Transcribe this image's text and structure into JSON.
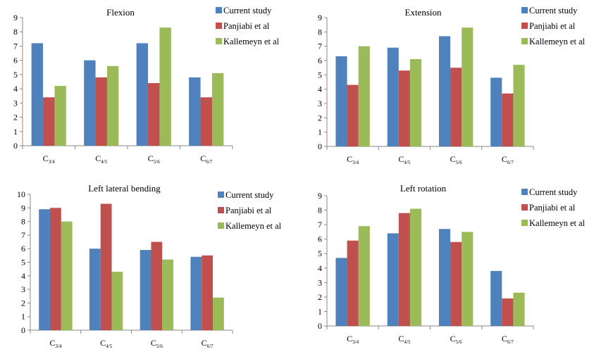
{
  "colors": {
    "current": "#4F81BD",
    "panjiabi": "#C0504D",
    "kallemeyn": "#9BBB59"
  },
  "chart_data": [
    {
      "type": "bar",
      "title": "Flexion",
      "categories": [
        {
          "main": "C",
          "sub": "3/4"
        },
        {
          "main": "C",
          "sub": "4/5"
        },
        {
          "main": "C",
          "sub": "5/6"
        },
        {
          "main": "C",
          "sub": "6/7"
        }
      ],
      "ylim": [
        0,
        9
      ],
      "yticks": [
        "0",
        "1",
        "2",
        "3",
        "4",
        "5",
        "6",
        "7",
        "8",
        "9"
      ],
      "series": [
        {
          "name": "Current study",
          "color": "#4F81BD",
          "values": [
            7.2,
            6.0,
            7.2,
            4.8
          ]
        },
        {
          "name": "Panjiabi et al",
          "color": "#C0504D",
          "values": [
            3.4,
            4.8,
            4.4,
            3.4
          ]
        },
        {
          "name": "Kallemeyn et al",
          "color": "#9BBB59",
          "values": [
            4.2,
            5.6,
            8.3,
            5.1
          ]
        }
      ],
      "legend": "top-right",
      "grid": false
    },
    {
      "type": "bar",
      "title": "Extension",
      "categories": [
        {
          "main": "C",
          "sub": "3/4"
        },
        {
          "main": "C",
          "sub": "4/5"
        },
        {
          "main": "C",
          "sub": "5/6"
        },
        {
          "main": "C",
          "sub": "6/7"
        }
      ],
      "ylim": [
        0,
        9
      ],
      "yticks": [
        "0",
        "1",
        "2",
        "3",
        "4",
        "5",
        "6",
        "7",
        "8",
        "9"
      ],
      "series": [
        {
          "name": "Current study",
          "color": "#4F81BD",
          "values": [
            6.3,
            6.9,
            7.7,
            4.8
          ]
        },
        {
          "name": "Panjiabi et al",
          "color": "#C0504D",
          "values": [
            4.3,
            5.3,
            5.5,
            3.7
          ]
        },
        {
          "name": "Kallemeyn et al",
          "color": "#9BBB59",
          "values": [
            7.0,
            6.1,
            8.3,
            5.7
          ]
        }
      ],
      "legend": "top-right",
      "grid": false
    },
    {
      "type": "bar",
      "title": "Left lateral bending",
      "categories": [
        {
          "main": "C",
          "sub": "3/4"
        },
        {
          "main": "C",
          "sub": "4/5"
        },
        {
          "main": "C",
          "sub": "5/6"
        },
        {
          "main": "C",
          "sub": "6/7"
        }
      ],
      "ylim": [
        0,
        10
      ],
      "yticks": [
        "0",
        "1",
        "2",
        "3",
        "4",
        "5",
        "6",
        "7",
        "8",
        "9",
        "10"
      ],
      "series": [
        {
          "name": "Current study",
          "color": "#4F81BD",
          "values": [
            8.9,
            6.0,
            5.9,
            5.4
          ]
        },
        {
          "name": "Panjiabi et al",
          "color": "#C0504D",
          "values": [
            9.0,
            9.3,
            6.5,
            5.5
          ]
        },
        {
          "name": "Kallemeyn et al",
          "color": "#9BBB59",
          "values": [
            8.0,
            4.3,
            5.2,
            2.4
          ]
        }
      ],
      "legend": "top-right",
      "grid": false
    },
    {
      "type": "bar",
      "title": "Left rotation",
      "categories": [
        {
          "main": "C",
          "sub": "3/4"
        },
        {
          "main": "C",
          "sub": "4/5"
        },
        {
          "main": "C",
          "sub": "5/6"
        },
        {
          "main": "C",
          "sub": "6/7"
        }
      ],
      "ylim": [
        0,
        9
      ],
      "yticks": [
        "0",
        "1",
        "2",
        "3",
        "4",
        "5",
        "6",
        "7",
        "8",
        "9"
      ],
      "series": [
        {
          "name": "Current study",
          "color": "#4F81BD",
          "values": [
            4.7,
            6.4,
            6.7,
            3.8
          ]
        },
        {
          "name": "Panjiabi et al",
          "color": "#C0504D",
          "values": [
            5.9,
            7.8,
            5.8,
            1.9
          ]
        },
        {
          "name": "Kallemeyn et al",
          "color": "#9BBB59",
          "values": [
            6.9,
            8.1,
            6.5,
            2.3
          ]
        }
      ],
      "legend": "top-right",
      "grid": false
    }
  ]
}
